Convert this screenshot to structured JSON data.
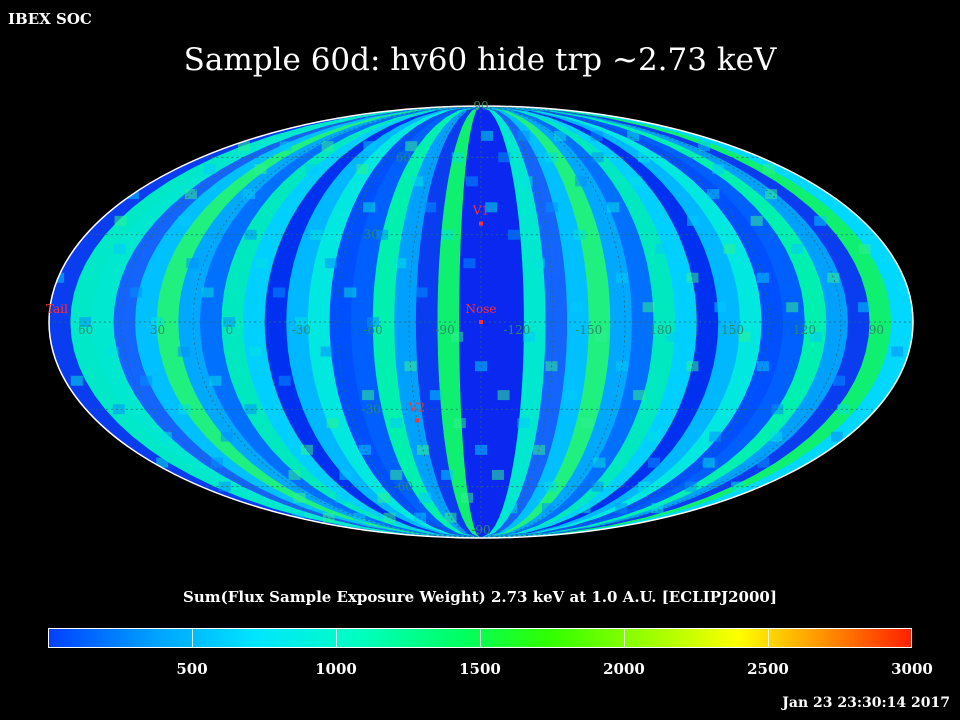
{
  "header": {
    "soc_label": "IBEX SOC",
    "title": "Sample 60d: hv60 hide trp ~2.73 keV"
  },
  "map": {
    "projection": "Mollweide",
    "frame": "ECLIPJ2000",
    "lat_labels": [
      "90",
      "60",
      "30",
      "-30",
      "-60",
      "-90"
    ],
    "lon_labels": [
      "60",
      "30",
      "0",
      "-30",
      "-60",
      "-90",
      "-120",
      "-150",
      "180",
      "150",
      "120",
      "90"
    ],
    "markers": [
      {
        "label": "V1",
        "lon": -105,
        "lat": 34
      },
      {
        "label": "Nose",
        "lon": -105,
        "lat": 0
      },
      {
        "label": "V2",
        "lon": -75,
        "lat": -34
      },
      {
        "label": "Tail",
        "lon": 75,
        "lat": 0
      }
    ],
    "label_color": "#2a8a6a",
    "marker_color": "#ff3030"
  },
  "colorbar": {
    "label": "Sum(Flux Sample Exposure Weight)  2.73 keV at 1.0 A.U. [ECLIPJ2000]",
    "ticks": [
      "500",
      "1000",
      "1500",
      "2000",
      "2500",
      "3000"
    ],
    "range": [
      0,
      3000
    ]
  },
  "timestamp": "Jan 23 23:30:14 2017"
}
